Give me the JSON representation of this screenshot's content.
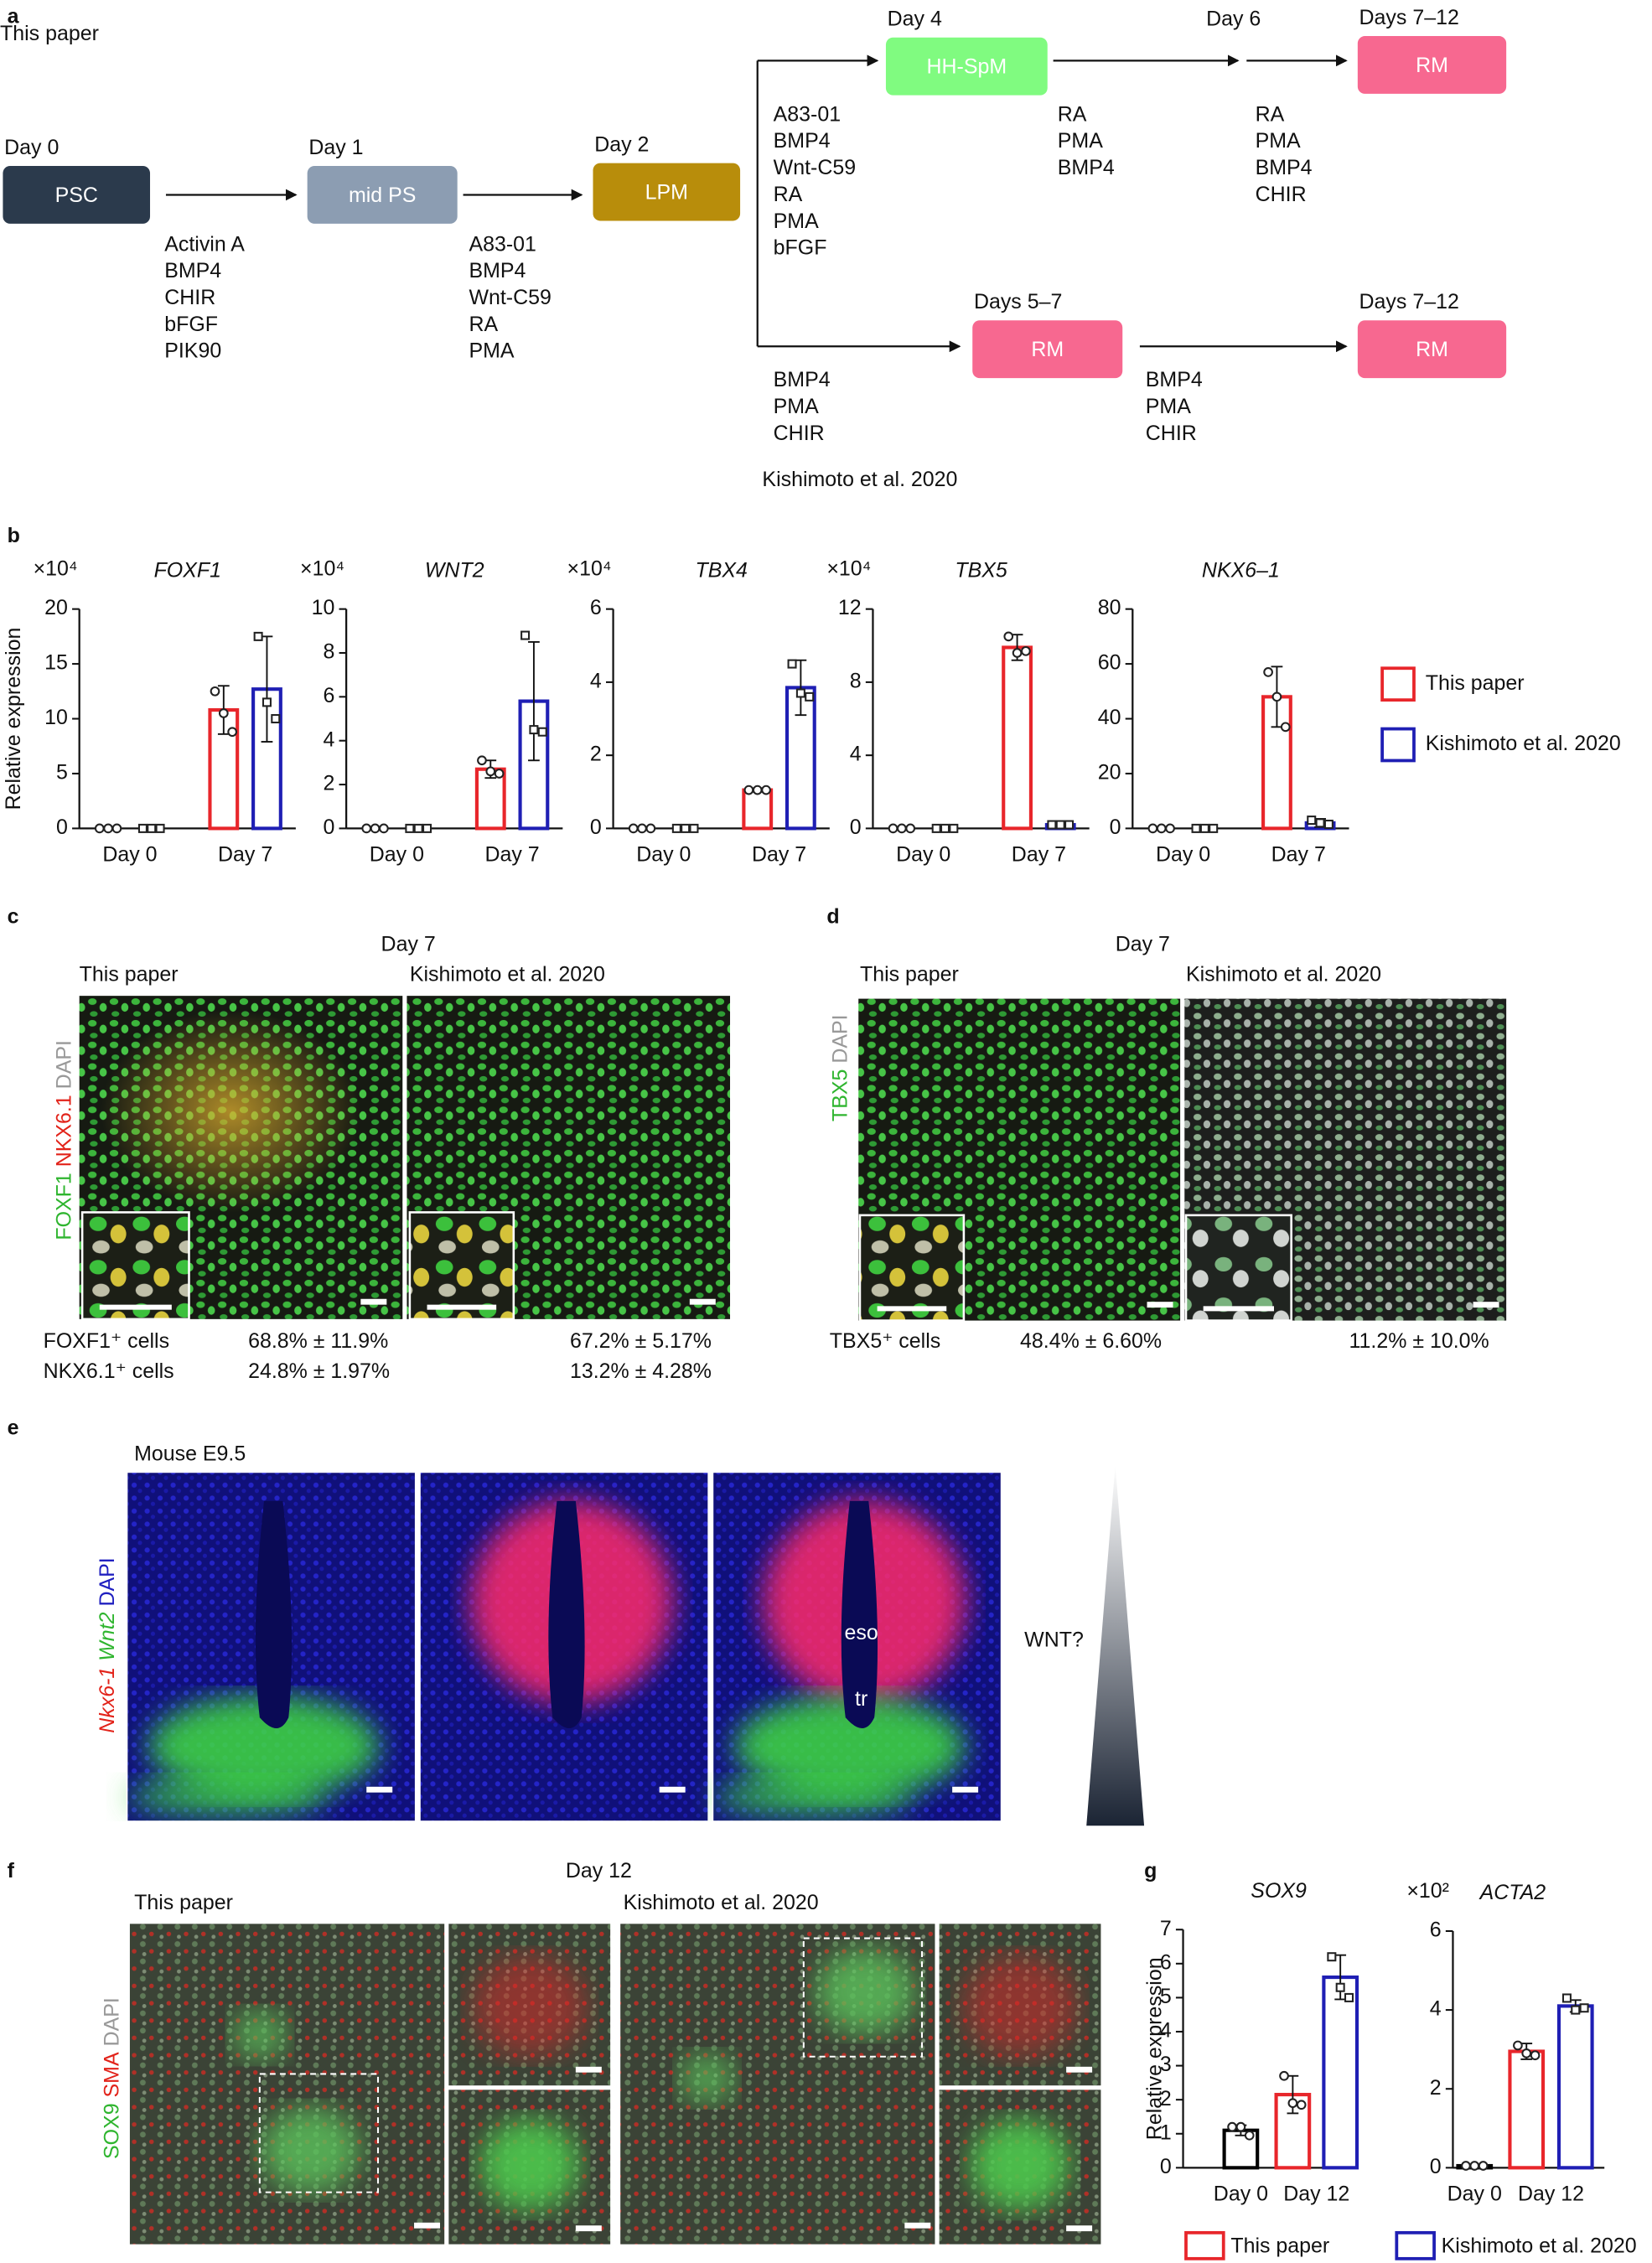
{
  "panel_labels": [
    "a",
    "b",
    "c",
    "d",
    "e",
    "f",
    "g"
  ],
  "a": {
    "source_top": "This paper",
    "source_bottom": "Kishimoto et al. 2020",
    "stages": [
      {
        "day": "Day 0",
        "name": "PSC",
        "color": "#2b3a4c"
      },
      {
        "day": "Day 1",
        "name": "mid PS",
        "color": "#8c9db2"
      },
      {
        "day": "Day 2",
        "name": "LPM",
        "color": "#b88d0b"
      },
      {
        "day": "Day 4",
        "name": "HH-SpM",
        "color": "#80fb80"
      },
      {
        "day": "Days 7–12",
        "name": "RM",
        "color": "#f76890"
      },
      {
        "day": "Days 5–7",
        "name": "RM",
        "color": "#f76890"
      },
      {
        "day": "Days 7–12",
        "name": "RM",
        "color": "#f76890"
      }
    ],
    "extra_day": "Day 6",
    "conditions": [
      [
        "Activin A",
        "BMP4",
        "CHIR",
        "bFGF",
        "PIK90"
      ],
      [
        "A83-01",
        "BMP4",
        "Wnt-C59",
        "RA",
        "PMA"
      ],
      [
        "A83-01",
        "BMP4",
        "Wnt-C59",
        "RA",
        "PMA",
        "bFGF"
      ],
      [
        "RA",
        "PMA",
        "BMP4"
      ],
      [
        "RA",
        "PMA",
        "BMP4",
        "CHIR"
      ],
      [
        "BMP4",
        "PMA",
        "CHIR"
      ],
      [
        "BMP4",
        "PMA",
        "CHIR"
      ]
    ]
  },
  "chart_data": [
    {
      "type": "bar",
      "title": "FOXF1",
      "multiplier": "×10⁴",
      "y_label": "Relative expression",
      "categories": [
        "Day 0",
        "Day 7"
      ],
      "ylim": [
        0,
        20
      ],
      "yticks": [
        0,
        5,
        10,
        15,
        20
      ],
      "series": [
        {
          "color": "#e8262b",
          "marker": "circle",
          "values": [
            0,
            10.8
          ],
          "errors": [
            0,
            2.2
          ],
          "points": [
            [
              0,
              0,
              0
            ],
            [
              12.5,
              10.5,
              8.8
            ]
          ]
        },
        {
          "color": "#1f1fb4",
          "marker": "square",
          "values": [
            0,
            12.7
          ],
          "errors": [
            0,
            4.8
          ],
          "points": [
            [
              0,
              0,
              0
            ],
            [
              17.5,
              11.5,
              10
            ]
          ]
        }
      ]
    },
    {
      "type": "bar",
      "title": "WNT2",
      "multiplier": "×10⁴",
      "categories": [
        "Day 0",
        "Day 7"
      ],
      "ylim": [
        0,
        10
      ],
      "yticks": [
        0,
        2,
        4,
        6,
        8,
        10
      ],
      "series": [
        {
          "color": "#e8262b",
          "marker": "circle",
          "values": [
            0,
            2.7
          ],
          "errors": [
            0,
            0.4
          ],
          "points": [
            [
              0,
              0,
              0
            ],
            [
              3.1,
              2.6,
              2.5
            ]
          ]
        },
        {
          "color": "#1f1fb4",
          "marker": "square",
          "values": [
            0,
            5.8
          ],
          "errors": [
            0,
            2.7
          ],
          "points": [
            [
              0,
              0,
              0
            ],
            [
              8.8,
              4.5,
              4.4
            ]
          ]
        }
      ]
    },
    {
      "type": "bar",
      "title": "TBX4",
      "multiplier": "×10⁴",
      "categories": [
        "Day 0",
        "Day 7"
      ],
      "ylim": [
        0,
        6
      ],
      "yticks": [
        0,
        2,
        4,
        6
      ],
      "series": [
        {
          "color": "#e8262b",
          "marker": "circle",
          "values": [
            0,
            1.05
          ],
          "errors": [
            0,
            0.05
          ],
          "points": [
            [
              0,
              0,
              0
            ],
            [
              1.05,
              1.05,
              1.05
            ]
          ]
        },
        {
          "color": "#1f1fb4",
          "marker": "square",
          "values": [
            0,
            3.85
          ],
          "errors": [
            0,
            0.75
          ],
          "points": [
            [
              0,
              0,
              0
            ],
            [
              4.5,
              3.7,
              3.6
            ]
          ]
        }
      ]
    },
    {
      "type": "bar",
      "title": "TBX5",
      "multiplier": "×10⁴",
      "categories": [
        "Day 0",
        "Day 7"
      ],
      "ylim": [
        0,
        12
      ],
      "yticks": [
        0,
        4,
        8,
        12
      ],
      "series": [
        {
          "color": "#e8262b",
          "marker": "circle",
          "values": [
            0,
            9.9
          ],
          "errors": [
            0,
            0.7
          ],
          "points": [
            [
              0,
              0,
              0
            ],
            [
              10.5,
              9.6,
              9.7
            ]
          ]
        },
        {
          "color": "#1f1fb4",
          "marker": "square",
          "values": [
            0,
            0.2
          ],
          "errors": [
            0,
            0.05
          ],
          "points": [
            [
              0,
              0,
              0
            ],
            [
              0.2,
              0.2,
              0.2
            ]
          ]
        }
      ]
    },
    {
      "type": "bar",
      "title": "NKX6–1",
      "categories": [
        "Day 0",
        "Day 7"
      ],
      "ylim": [
        0,
        80
      ],
      "yticks": [
        0,
        20,
        40,
        60,
        80
      ],
      "series": [
        {
          "color": "#e8262b",
          "marker": "circle",
          "values": [
            0,
            48
          ],
          "errors": [
            0,
            11
          ],
          "points": [
            [
              0,
              0,
              0
            ],
            [
              57,
              48,
              37
            ]
          ]
        },
        {
          "color": "#1f1fb4",
          "marker": "square",
          "values": [
            0,
            2
          ],
          "errors": [
            0,
            1.5
          ],
          "points": [
            [
              0,
              0,
              0
            ],
            [
              3,
              2,
              1.5
            ]
          ]
        }
      ]
    },
    {
      "type": "bar",
      "title": "SOX9",
      "y_label": "Relative expression",
      "categories": [
        "Day 0",
        "Day 12"
      ],
      "ylim": [
        0,
        7
      ],
      "yticks": [
        0,
        1,
        2,
        3,
        4,
        5,
        6,
        7
      ],
      "series": [
        {
          "color": "#000000",
          "marker": "circle",
          "values": [
            1.1,
            null
          ],
          "errors": [
            0.15,
            null
          ],
          "points": [
            [
              1.2,
              1.2,
              0.95
            ],
            null
          ]
        },
        {
          "color": "#e8262b",
          "marker": "circle",
          "values": [
            null,
            2.15
          ],
          "errors": [
            null,
            0.55
          ],
          "points": [
            null,
            [
              2.7,
              1.9,
              1.85
            ]
          ]
        },
        {
          "color": "#1f1fb4",
          "marker": "square",
          "values": [
            null,
            5.6
          ],
          "errors": [
            null,
            0.65
          ],
          "points": [
            null,
            [
              6.2,
              5.3,
              5.0
            ]
          ]
        }
      ]
    },
    {
      "type": "bar",
      "title": "ACTA2",
      "multiplier": "×10²",
      "categories": [
        "Day 0",
        "Day 12"
      ],
      "ylim": [
        0,
        6
      ],
      "yticks": [
        0,
        2,
        4,
        6
      ],
      "series": [
        {
          "color": "#000000",
          "marker": "circle",
          "values": [
            0.05,
            null
          ],
          "errors": [
            0,
            null
          ],
          "points": [
            [
              0.05,
              0.05,
              0.05
            ],
            null
          ]
        },
        {
          "color": "#e8262b",
          "marker": "circle",
          "values": [
            null,
            2.95
          ],
          "errors": [
            null,
            0.2
          ],
          "points": [
            null,
            [
              3.1,
              2.9,
              2.85
            ]
          ]
        },
        {
          "color": "#1f1fb4",
          "marker": "square",
          "values": [
            null,
            4.1
          ],
          "errors": [
            null,
            0.15
          ],
          "points": [
            null,
            [
              4.3,
              4.0,
              4.05
            ]
          ]
        }
      ]
    }
  ],
  "legends": {
    "b": [
      {
        "name": "This paper",
        "color": "#e8262b"
      },
      {
        "name": "Kishimoto et al. 2020",
        "color": "#1f1fb4"
      }
    ],
    "g": [
      {
        "name": "This paper",
        "color": "#e8262b"
      },
      {
        "name": "Kishimoto et al. 2020",
        "color": "#1f1fb4"
      }
    ]
  },
  "c": {
    "timepoint": "Day 7",
    "columns": [
      "This paper",
      "Kishimoto et al. 2020"
    ],
    "stain": [
      "FOXF1",
      "NKX6.1",
      "DAPI"
    ],
    "rows": [
      [
        "FOXF1⁺ cells",
        "68.8% ± 11.9%",
        "67.2% ± 5.17%"
      ],
      [
        "NKX6.1⁺ cells",
        "24.8% ± 1.97%",
        "13.2% ± 4.28%"
      ]
    ]
  },
  "d": {
    "timepoint": "Day 7",
    "columns": [
      "This paper",
      "Kishimoto et al. 2020"
    ],
    "stain": [
      "TBX5",
      "DAPI"
    ],
    "rows": [
      [
        "TBX5⁺ cells",
        "48.4% ± 6.60%",
        "11.2% ± 10.0%"
      ]
    ]
  },
  "e": {
    "sample": "Mouse E9.5",
    "stain": [
      "Nkx6-1",
      "Wnt2",
      "DAPI"
    ],
    "annotations": [
      "eso",
      "tr"
    ],
    "gradient_label": "WNT?"
  },
  "f": {
    "timepoint": "Day 12",
    "columns": [
      "This paper",
      "Kishimoto et al. 2020"
    ],
    "stain": [
      "SOX9",
      "SMA",
      "DAPI"
    ]
  }
}
